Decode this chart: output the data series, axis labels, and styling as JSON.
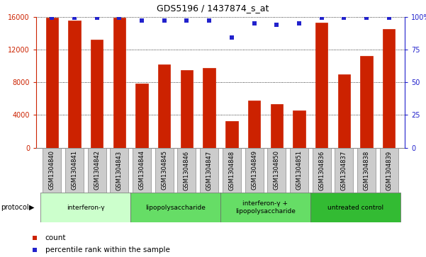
{
  "title": "GDS5196 / 1437874_s_at",
  "samples": [
    "GSM1304840",
    "GSM1304841",
    "GSM1304842",
    "GSM1304843",
    "GSM1304844",
    "GSM1304845",
    "GSM1304846",
    "GSM1304847",
    "GSM1304848",
    "GSM1304849",
    "GSM1304850",
    "GSM1304851",
    "GSM1304836",
    "GSM1304837",
    "GSM1304838",
    "GSM1304839"
  ],
  "counts": [
    15900,
    15500,
    13200,
    15900,
    7800,
    10200,
    9500,
    9700,
    3300,
    5800,
    5300,
    4600,
    15300,
    9000,
    11200,
    14500
  ],
  "percentiles": [
    99,
    99,
    99,
    99,
    97,
    97,
    97,
    97,
    84,
    95,
    94,
    95,
    99,
    99,
    99,
    99
  ],
  "groups": [
    {
      "label": "interferon-γ",
      "start": 0,
      "end": 4,
      "color": "#ccffcc"
    },
    {
      "label": "lipopolysaccharide",
      "start": 4,
      "end": 8,
      "color": "#66dd66"
    },
    {
      "label": "interferon-γ +\nlipopolysaccharide",
      "start": 8,
      "end": 12,
      "color": "#66dd66"
    },
    {
      "label": "untreated control",
      "start": 12,
      "end": 16,
      "color": "#33bb33"
    }
  ],
  "bar_color": "#cc2200",
  "dot_color": "#2222cc",
  "ylim_left": [
    0,
    16000
  ],
  "ylim_right": [
    0,
    100
  ],
  "yticks_left": [
    0,
    4000,
    8000,
    12000,
    16000
  ],
  "ytick_labels_left": [
    "0",
    "4000",
    "8000",
    "12000",
    "16000"
  ],
  "yticks_right": [
    0,
    25,
    50,
    75,
    100
  ],
  "ytick_labels_right": [
    "0",
    "25",
    "50",
    "75",
    "100%"
  ],
  "bar_width": 0.55,
  "tick_label_fontsize": 7,
  "title_fontsize": 9
}
